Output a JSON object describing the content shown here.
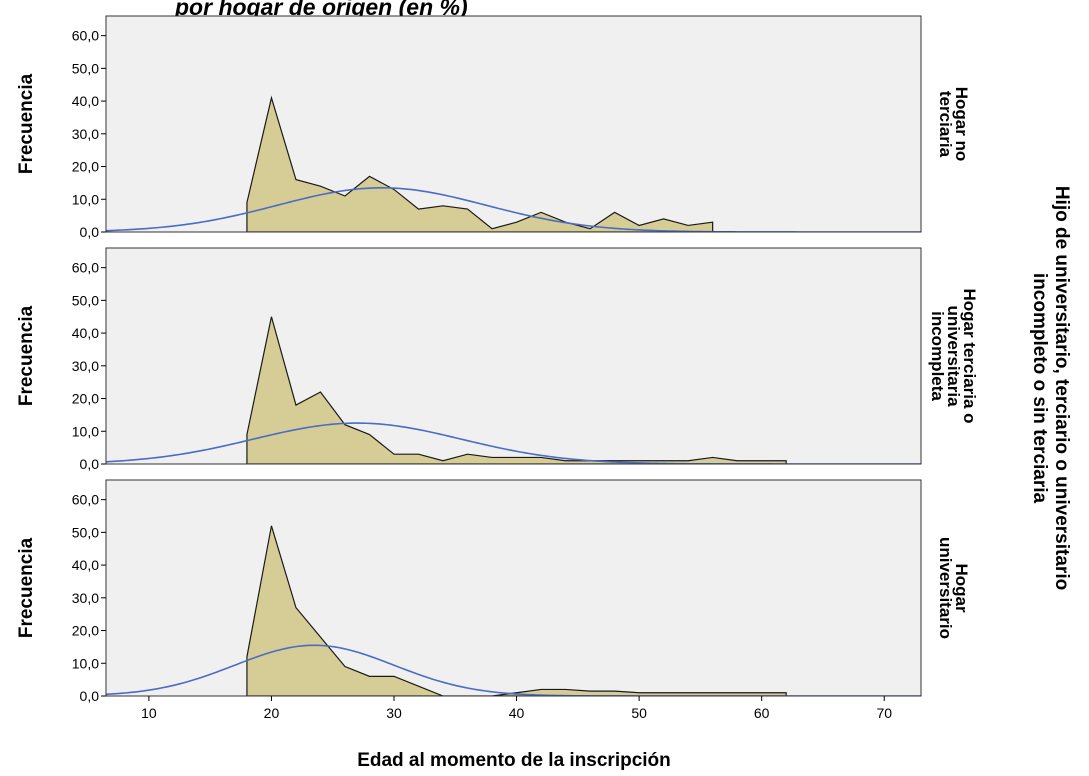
{
  "header": {
    "title_fragment": "por hogar de origen (en %)"
  },
  "chart_data": {
    "type": "area",
    "title": "",
    "xlabel": "Edad al momento de la inscripción",
    "ylabel": "Frecuencia",
    "group_label": "Hijo de universitario, terciario o universitario incompleto o sin terciaria",
    "xlim": [
      6.5,
      73
    ],
    "ylim": [
      0,
      66
    ],
    "x_ticks": [
      10,
      20,
      30,
      40,
      50,
      60,
      70
    ],
    "x_tick_labels": [
      "10",
      "20",
      "30",
      "40",
      "50",
      "60",
      "70"
    ],
    "y_ticks": [
      0,
      10,
      20,
      30,
      40,
      50,
      60
    ],
    "y_tick_labels": [
      "0,0",
      "10,0",
      "20,0",
      "30,0",
      "40,0",
      "50,0",
      "60,0"
    ],
    "grid": false,
    "colors": {
      "plot_background": "#f0f0f0",
      "area_fill": "#d6cc96",
      "area_stroke": "#1a1a1a",
      "curve": "#4a6cc4"
    },
    "series": [
      {
        "name": "Hogar no terciaria",
        "label_lines": [
          "Hogar no",
          "terciaria"
        ],
        "x": [
          18,
          18,
          20,
          22,
          24,
          26,
          28,
          30,
          32,
          34,
          36,
          38,
          40,
          42,
          44,
          46,
          48,
          50,
          52,
          54,
          56,
          56
        ],
        "values": [
          0,
          9,
          41,
          16,
          14,
          11,
          17,
          13,
          7,
          8,
          7,
          1,
          3,
          6,
          3,
          1,
          6,
          2,
          4,
          2,
          3,
          0
        ],
        "normal_curve": {
          "mean": 29,
          "sd": 8.5,
          "peak": 13.5
        }
      },
      {
        "name": "Hogar terciaria o universitaria incompleta",
        "label_lines": [
          "Hogar terciaria o",
          "universitaria",
          "incompleta"
        ],
        "x": [
          18,
          18,
          20,
          22,
          24,
          26,
          28,
          30,
          32,
          34,
          36,
          38,
          40,
          42,
          44,
          46,
          48,
          50,
          52,
          54,
          56,
          58,
          60,
          62,
          62
        ],
        "values": [
          0,
          9,
          45,
          18,
          22,
          12,
          9,
          3,
          3,
          1,
          3,
          2,
          2,
          2,
          1,
          1,
          1,
          1,
          1,
          1,
          2,
          1,
          1,
          1,
          0
        ],
        "normal_curve": {
          "mean": 27,
          "sd": 8.5,
          "peak": 12.5
        }
      },
      {
        "name": "Hogar universitario",
        "label_lines": [
          "Hogar",
          "universitario"
        ],
        "x": [
          18,
          18,
          20,
          22,
          24,
          26,
          28,
          30,
          32,
          34,
          36,
          38,
          40,
          42,
          44,
          46,
          48,
          50,
          52,
          54,
          56,
          58,
          60,
          62,
          62
        ],
        "values": [
          0,
          12,
          52,
          27,
          18,
          9,
          6,
          6,
          3,
          0,
          0,
          0,
          1,
          2,
          2,
          1.5,
          1.5,
          1,
          1,
          1,
          1,
          1,
          1,
          1,
          0
        ],
        "normal_curve": {
          "mean": 23.5,
          "sd": 6.5,
          "peak": 15.5
        }
      }
    ]
  }
}
